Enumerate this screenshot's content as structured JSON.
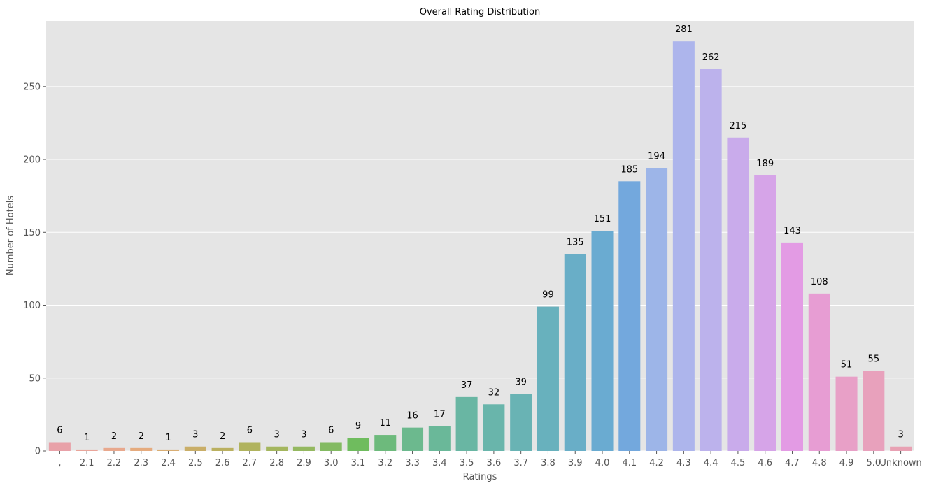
{
  "chart_data": {
    "type": "bar",
    "title": "Overall Rating Distribution",
    "xlabel": "Ratings",
    "ylabel": "Number of Hotels",
    "categories": [
      ",",
      "2.1",
      "2.2",
      "2.3",
      "2.4",
      "2.5",
      "2.6",
      "2.7",
      "2.8",
      "2.9",
      "3.0",
      "3.1",
      "3.2",
      "3.3",
      "3.4",
      "3.5",
      "3.6",
      "3.7",
      "3.8",
      "3.9",
      "4.0",
      "4.1",
      "4.2",
      "4.3",
      "4.4",
      "4.5",
      "4.6",
      "4.7",
      "4.8",
      "4.9",
      "5.0",
      "Unknown"
    ],
    "values": [
      6,
      1,
      2,
      2,
      1,
      3,
      2,
      6,
      3,
      3,
      6,
      9,
      11,
      16,
      17,
      37,
      32,
      39,
      99,
      135,
      151,
      185,
      194,
      281,
      262,
      215,
      189,
      143,
      108,
      51,
      55,
      3
    ],
    "colors": [
      "#e8a1a8",
      "#e9a59a",
      "#e8a88d",
      "#e5ab7e",
      "#d9ae74",
      "#c9ae68",
      "#bab060",
      "#b0b35e",
      "#a4b65e",
      "#94b860",
      "#83ba62",
      "#6fbc5e",
      "#6dba7c",
      "#6cb98e",
      "#6ab899",
      "#69b6a3",
      "#69b5ab",
      "#69b3b4",
      "#68b1bd",
      "#69aec7",
      "#6aabd1",
      "#73a8dd",
      "#9db5e8",
      "#adb5ec",
      "#bcb2ec",
      "#c9abeb",
      "#d6a4e8",
      "#e39be4",
      "#e79dd3",
      "#e8a0c7",
      "#e8a1bc",
      "#e8a1b3"
    ],
    "ylim": [
      0,
      295
    ],
    "yticks": [
      0,
      50,
      100,
      150,
      200,
      250
    ],
    "grid": true,
    "background": "#e5e5e5",
    "gridcolor": "#ffffff"
  }
}
